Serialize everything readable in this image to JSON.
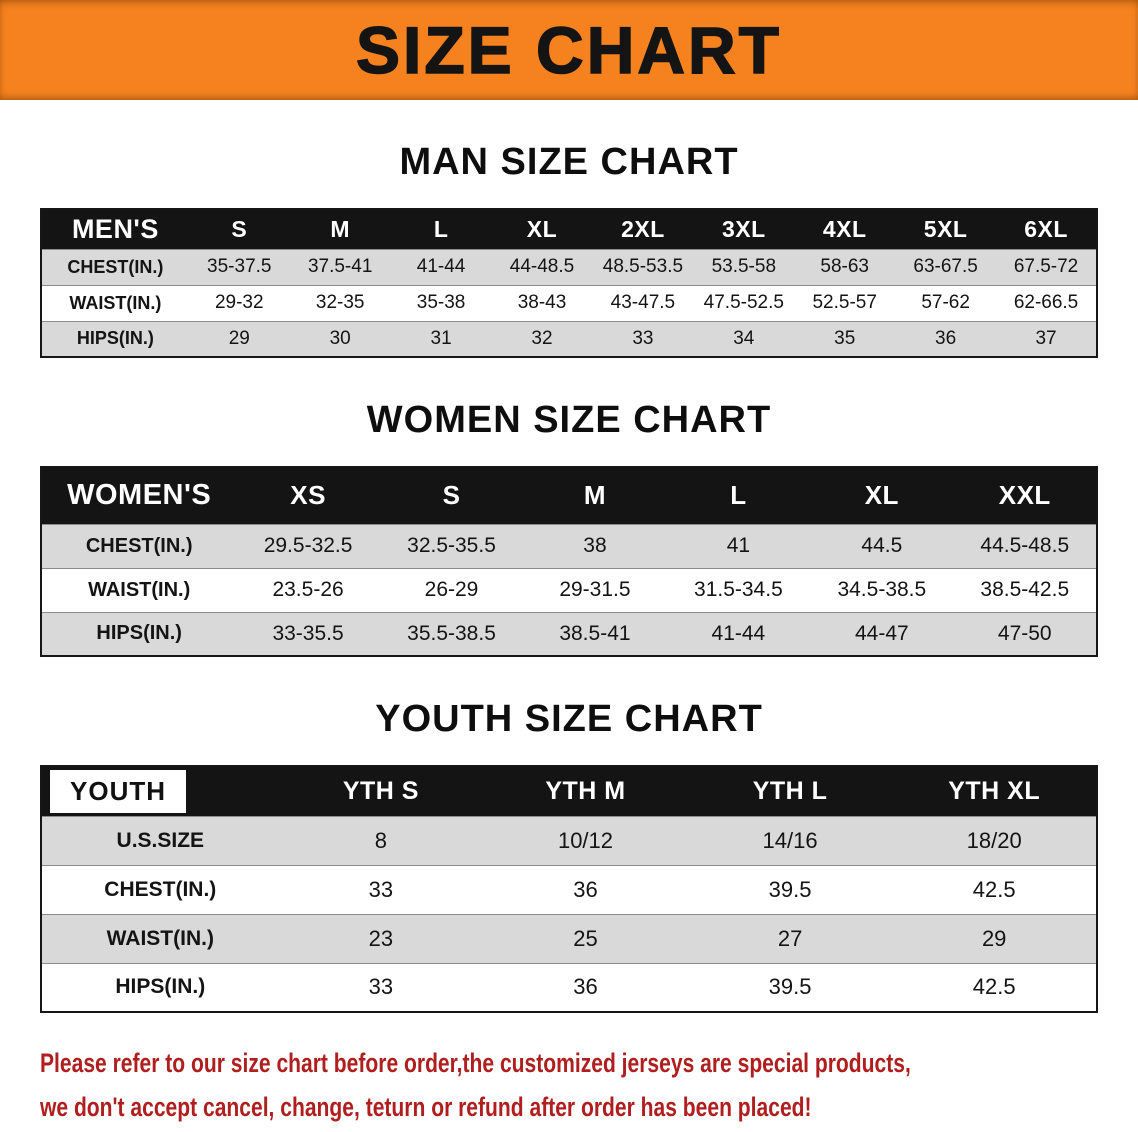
{
  "banner": {
    "title": "SIZE CHART"
  },
  "colors": {
    "accent": "#f5821f",
    "header-bg": "#141414",
    "row-gray": "#d9d9d9",
    "disclaimer-red": "#b01e1e"
  },
  "sections": [
    {
      "id": "men",
      "heading": "MAN SIZE CHART",
      "label_inverted": false,
      "table": {
        "header": [
          "MEN'S",
          "S",
          "M",
          "L",
          "XL",
          "2XL",
          "3XL",
          "4XL",
          "5XL",
          "6XL"
        ],
        "rows": [
          [
            "CHEST(IN.)",
            "35-37.5",
            "37.5-41",
            "41-44",
            "44-48.5",
            "48.5-53.5",
            "53.5-58",
            "58-63",
            "63-67.5",
            "67.5-72"
          ],
          [
            "WAIST(IN.)",
            "29-32",
            "32-35",
            "35-38",
            "38-43",
            "43-47.5",
            "47.5-52.5",
            "52.5-57",
            "57-62",
            "62-66.5"
          ],
          [
            "HIPS(IN.)",
            "29",
            "30",
            "31",
            "32",
            "33",
            "34",
            "35",
            "36",
            "37"
          ]
        ]
      }
    },
    {
      "id": "women",
      "heading": "WOMEN SIZE CHART",
      "label_inverted": false,
      "table": {
        "header": [
          "WOMEN'S",
          "XS",
          "S",
          "M",
          "L",
          "XL",
          "XXL"
        ],
        "rows": [
          [
            "CHEST(IN.)",
            "29.5-32.5",
            "32.5-35.5",
            "38",
            "41",
            "44.5",
            "44.5-48.5"
          ],
          [
            "WAIST(IN.)",
            "23.5-26",
            "26-29",
            "29-31.5",
            "31.5-34.5",
            "34.5-38.5",
            "38.5-42.5"
          ],
          [
            "HIPS(IN.)",
            "33-35.5",
            "35.5-38.5",
            "38.5-41",
            "41-44",
            "44-47",
            "47-50"
          ]
        ]
      }
    },
    {
      "id": "youth",
      "heading": "YOUTH SIZE CHART",
      "label_inverted": true,
      "table": {
        "header": [
          "YOUTH",
          "YTH S",
          "YTH M",
          "YTH L",
          "YTH XL"
        ],
        "rows": [
          [
            "U.S.SIZE",
            "8",
            "10/12",
            "14/16",
            "18/20"
          ],
          [
            "CHEST(IN.)",
            "33",
            "36",
            "39.5",
            "42.5"
          ],
          [
            "WAIST(IN.)",
            "23",
            "25",
            "27",
            "29"
          ],
          [
            "HIPS(IN.)",
            "33",
            "36",
            "39.5",
            "42.5"
          ]
        ]
      }
    }
  ],
  "disclaimer": {
    "lines": [
      "Please refer to our size chart before order,the customized jerseys are special products,",
      "we don't accept cancel, change, teturn or refund after order has been placed!"
    ]
  }
}
